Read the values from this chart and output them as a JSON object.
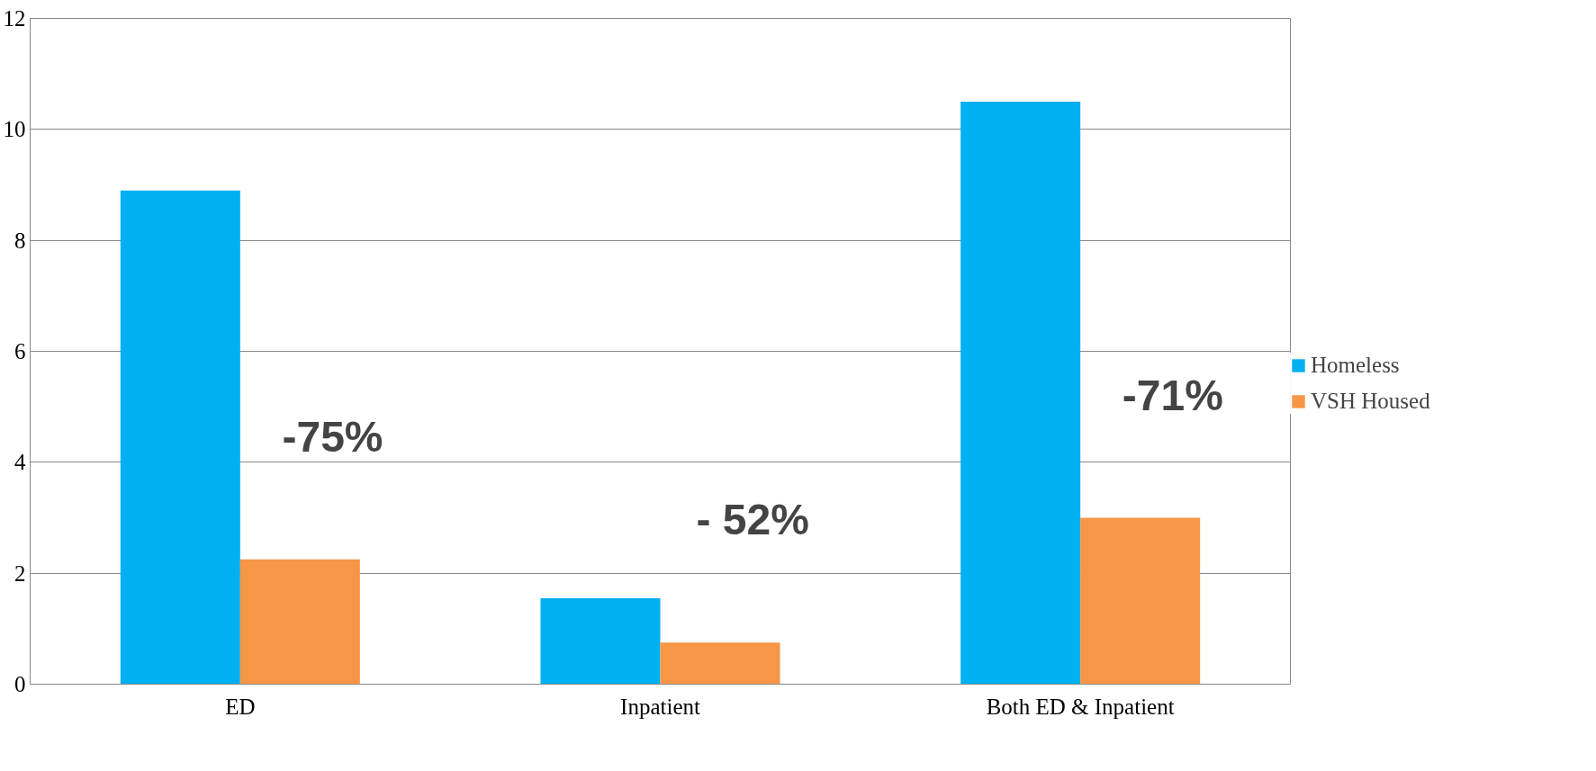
{
  "chart_data": {
    "type": "bar",
    "categories": [
      "ED",
      "Inpatient",
      "Both ED & Inpatient"
    ],
    "series": [
      {
        "name": "Homeless",
        "color": "#00b0f0",
        "values": [
          8.9,
          1.55,
          10.5
        ]
      },
      {
        "name": "VSH Housed",
        "color": "#f79646",
        "values": [
          2.25,
          0.75,
          3.0
        ]
      }
    ],
    "ylim": [
      0,
      12
    ],
    "yticks": [
      0,
      2,
      4,
      6,
      8,
      10,
      12
    ],
    "grid": "y",
    "legend": "right",
    "annotations": [
      "-75%",
      "- 52%",
      "-71%"
    ]
  }
}
